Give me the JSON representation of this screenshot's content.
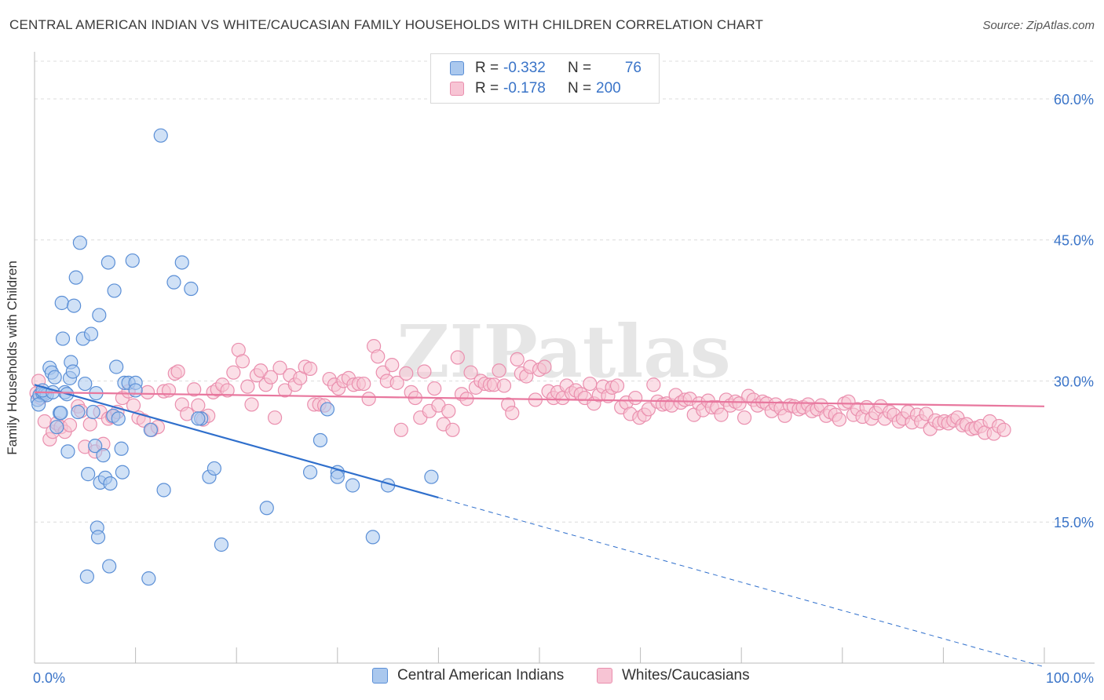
{
  "title": "CENTRAL AMERICAN INDIAN VS WHITE/CAUCASIAN FAMILY HOUSEHOLDS WITH CHILDREN CORRELATION CHART",
  "source": "Source: ZipAtlas.com",
  "watermark": "ZIPatlas",
  "colors": {
    "blue_fill": "#aac8ee",
    "blue_stroke": "#5b8fd6",
    "blue_line": "#2f6fcc",
    "pink_fill": "#f7c4d4",
    "pink_stroke": "#ea8fae",
    "pink_line": "#e8779e",
    "axis_text": "#3a74c8",
    "grid": "#dcdcdc"
  },
  "legend": {
    "rows": [
      {
        "r_label": "R =",
        "r_value": "-0.332",
        "n_label": "N =",
        "n_value": "76"
      },
      {
        "r_label": "R =",
        "r_value": "-0.178",
        "n_label": "N =",
        "n_value": "200"
      }
    ]
  },
  "chart_data": {
    "type": "scatter",
    "title": "CENTRAL AMERICAN INDIAN VS WHITE/CAUCASIAN FAMILY HOUSEHOLDS WITH CHILDREN CORRELATION CHART",
    "xlabel": "",
    "ylabel": "Family Households with Children",
    "xlim": [
      0,
      100
    ],
    "ylim": [
      0,
      64
    ],
    "x_tick_labels": [
      "0.0%",
      "100.0%"
    ],
    "y_ticks": [
      15,
      30,
      45,
      60
    ],
    "y_tick_labels": [
      "15.0%",
      "30.0%",
      "45.0%",
      "60.0%"
    ],
    "grid": true,
    "legend_position": "bottom",
    "series": [
      {
        "name": "Central American Indians",
        "color": "blue",
        "trend": {
          "x0": 0,
          "y0": 29.6,
          "x1": 40,
          "y1": 17.6,
          "dashed_to_x": 100,
          "dashed_to_y": -0.4
        },
        "points": [
          [
            0.3,
            28.0
          ],
          [
            0.5,
            28.5
          ],
          [
            0.8,
            28.7
          ],
          [
            1.0,
            28.6
          ],
          [
            1.2,
            28.5
          ],
          [
            1.5,
            31.4
          ],
          [
            1.7,
            30.9
          ],
          [
            2.0,
            30.4
          ],
          [
            2.2,
            25.1
          ],
          [
            2.5,
            26.6
          ],
          [
            2.7,
            38.3
          ],
          [
            2.8,
            34.5
          ],
          [
            3.0,
            28.8
          ],
          [
            3.3,
            22.5
          ],
          [
            3.5,
            30.3
          ],
          [
            3.6,
            32.0
          ],
          [
            3.8,
            31.0
          ],
          [
            3.9,
            38.0
          ],
          [
            4.1,
            41.0
          ],
          [
            4.3,
            26.7
          ],
          [
            4.5,
            44.7
          ],
          [
            4.8,
            34.5
          ],
          [
            5.0,
            29.7
          ],
          [
            5.3,
            20.1
          ],
          [
            5.6,
            35.0
          ],
          [
            5.8,
            26.7
          ],
          [
            6.0,
            23.1
          ],
          [
            6.2,
            14.4
          ],
          [
            6.3,
            13.4
          ],
          [
            6.4,
            37.0
          ],
          [
            6.5,
            19.2
          ],
          [
            6.8,
            22.1
          ],
          [
            7.0,
            19.7
          ],
          [
            7.3,
            42.6
          ],
          [
            7.5,
            19.1
          ],
          [
            7.8,
            26.3
          ],
          [
            7.9,
            39.6
          ],
          [
            8.1,
            31.5
          ],
          [
            8.6,
            22.8
          ],
          [
            8.7,
            20.3
          ],
          [
            8.9,
            29.8
          ],
          [
            9.3,
            29.8
          ],
          [
            9.7,
            42.8
          ],
          [
            10.0,
            29.8
          ],
          [
            10.0,
            29.0
          ],
          [
            11.5,
            24.8
          ],
          [
            12.5,
            56.1
          ],
          [
            12.8,
            18.4
          ],
          [
            13.8,
            40.5
          ],
          [
            14.6,
            42.6
          ],
          [
            15.5,
            39.8
          ],
          [
            16.5,
            26.0
          ],
          [
            17.3,
            19.8
          ],
          [
            17.8,
            20.7
          ],
          [
            18.5,
            12.6
          ],
          [
            23.0,
            16.5
          ],
          [
            27.3,
            20.3
          ],
          [
            28.3,
            23.7
          ],
          [
            29.0,
            27.0
          ],
          [
            30.0,
            20.3
          ],
          [
            30.0,
            19.8
          ],
          [
            31.5,
            18.9
          ],
          [
            33.5,
            13.4
          ],
          [
            35.0,
            18.9
          ],
          [
            39.3,
            19.8
          ],
          [
            5.2,
            9.2
          ],
          [
            7.4,
            10.3
          ],
          [
            11.3,
            9.0
          ],
          [
            2.6,
            26.6
          ],
          [
            0.8,
            29.0
          ],
          [
            1.8,
            28.8
          ],
          [
            0.4,
            27.5
          ],
          [
            3.2,
            28.6
          ],
          [
            6.1,
            28.7
          ],
          [
            16.2,
            26.0
          ],
          [
            8.3,
            26.0
          ]
        ]
      },
      {
        "name": "Whites/Caucasians",
        "color": "pink",
        "trend": {
          "x0": 0,
          "y0": 28.8,
          "x1": 100,
          "y1": 27.3
        },
        "points": [
          [
            0.2,
            28.7
          ],
          [
            0.4,
            30.0
          ],
          [
            0.6,
            28.2
          ],
          [
            1.0,
            25.7
          ],
          [
            1.5,
            23.8
          ],
          [
            1.8,
            24.6
          ],
          [
            2.2,
            25.5
          ],
          [
            2.6,
            25.1
          ],
          [
            3.0,
            24.6
          ],
          [
            3.5,
            25.3
          ],
          [
            4.3,
            27.3
          ],
          [
            4.6,
            26.8
          ],
          [
            5.0,
            23.0
          ],
          [
            5.5,
            25.4
          ],
          [
            6.0,
            22.5
          ],
          [
            6.5,
            26.7
          ],
          [
            6.8,
            23.3
          ],
          [
            7.3,
            26.0
          ],
          [
            7.7,
            26.2
          ],
          [
            8.2,
            26.7
          ],
          [
            8.7,
            28.2
          ],
          [
            9.3,
            28.9
          ],
          [
            9.8,
            27.4
          ],
          [
            10.3,
            26.1
          ],
          [
            10.8,
            25.8
          ],
          [
            11.2,
            28.8
          ],
          [
            11.6,
            24.8
          ],
          [
            12.2,
            25.1
          ],
          [
            12.8,
            28.9
          ],
          [
            13.3,
            29.0
          ],
          [
            13.9,
            30.8
          ],
          [
            14.2,
            31.0
          ],
          [
            14.6,
            27.5
          ],
          [
            15.1,
            26.5
          ],
          [
            15.8,
            29.1
          ],
          [
            16.2,
            27.4
          ],
          [
            16.7,
            25.9
          ],
          [
            17.2,
            26.3
          ],
          [
            17.7,
            28.8
          ],
          [
            18.1,
            29.1
          ],
          [
            18.6,
            29.6
          ],
          [
            19.1,
            29.0
          ],
          [
            19.7,
            30.9
          ],
          [
            20.2,
            33.3
          ],
          [
            20.6,
            32.1
          ],
          [
            21.1,
            29.4
          ],
          [
            21.5,
            27.5
          ],
          [
            22.0,
            30.6
          ],
          [
            22.4,
            31.1
          ],
          [
            22.9,
            29.6
          ],
          [
            23.4,
            30.4
          ],
          [
            23.8,
            26.1
          ],
          [
            24.3,
            31.4
          ],
          [
            24.8,
            29.0
          ],
          [
            25.3,
            30.6
          ],
          [
            25.8,
            29.6
          ],
          [
            26.3,
            30.3
          ],
          [
            26.8,
            31.5
          ],
          [
            27.3,
            31.3
          ],
          [
            27.7,
            27.5
          ],
          [
            28.2,
            27.5
          ],
          [
            28.7,
            27.4
          ],
          [
            29.2,
            30.2
          ],
          [
            29.7,
            29.6
          ],
          [
            30.1,
            29.2
          ],
          [
            30.6,
            30.0
          ],
          [
            31.1,
            30.3
          ],
          [
            31.6,
            29.6
          ],
          [
            32.1,
            29.7
          ],
          [
            32.6,
            29.7
          ],
          [
            33.1,
            28.1
          ],
          [
            33.6,
            33.7
          ],
          [
            34.0,
            32.6
          ],
          [
            34.5,
            30.9
          ],
          [
            34.9,
            30.0
          ],
          [
            35.4,
            31.7
          ],
          [
            35.9,
            29.8
          ],
          [
            36.3,
            24.8
          ],
          [
            36.8,
            30.8
          ],
          [
            37.3,
            28.8
          ],
          [
            37.7,
            28.2
          ],
          [
            38.2,
            26.1
          ],
          [
            38.6,
            31.0
          ],
          [
            39.1,
            26.8
          ],
          [
            39.6,
            29.2
          ],
          [
            40.0,
            27.4
          ],
          [
            40.5,
            25.4
          ],
          [
            41.0,
            26.8
          ],
          [
            41.4,
            24.8
          ],
          [
            41.9,
            32.5
          ],
          [
            42.3,
            28.6
          ],
          [
            42.8,
            28.1
          ],
          [
            43.2,
            30.9
          ],
          [
            43.7,
            29.3
          ],
          [
            44.2,
            30.0
          ],
          [
            44.6,
            29.7
          ],
          [
            45.1,
            29.6
          ],
          [
            45.5,
            29.6
          ],
          [
            46.0,
            31.1
          ],
          [
            46.5,
            29.5
          ],
          [
            46.9,
            27.5
          ],
          [
            47.3,
            26.6
          ],
          [
            47.8,
            32.3
          ],
          [
            48.2,
            30.8
          ],
          [
            48.7,
            30.5
          ],
          [
            49.1,
            31.5
          ],
          [
            49.6,
            28.0
          ],
          [
            50.0,
            31.2
          ],
          [
            50.5,
            31.5
          ],
          [
            50.9,
            28.9
          ],
          [
            51.4,
            28.2
          ],
          [
            51.8,
            28.8
          ],
          [
            52.3,
            28.2
          ],
          [
            52.7,
            29.5
          ],
          [
            53.2,
            28.7
          ],
          [
            53.6,
            29.0
          ],
          [
            54.1,
            28.6
          ],
          [
            54.5,
            28.2
          ],
          [
            55.0,
            29.7
          ],
          [
            55.4,
            27.6
          ],
          [
            55.9,
            28.5
          ],
          [
            56.3,
            29.4
          ],
          [
            56.8,
            28.4
          ],
          [
            57.2,
            29.3
          ],
          [
            57.7,
            29.5
          ],
          [
            58.1,
            27.2
          ],
          [
            58.6,
            27.7
          ],
          [
            59.0,
            26.5
          ],
          [
            59.5,
            28.2
          ],
          [
            59.9,
            26.1
          ],
          [
            60.4,
            26.4
          ],
          [
            60.8,
            27.0
          ],
          [
            61.3,
            29.6
          ],
          [
            61.7,
            27.8
          ],
          [
            62.2,
            27.5
          ],
          [
            62.6,
            27.6
          ],
          [
            63.1,
            27.4
          ],
          [
            63.5,
            28.5
          ],
          [
            64.0,
            27.7
          ],
          [
            64.4,
            28.0
          ],
          [
            64.9,
            28.1
          ],
          [
            65.3,
            26.4
          ],
          [
            65.8,
            27.6
          ],
          [
            66.2,
            26.9
          ],
          [
            66.7,
            27.9
          ],
          [
            67.1,
            27.2
          ],
          [
            67.6,
            27.2
          ],
          [
            68.0,
            26.4
          ],
          [
            68.5,
            28.0
          ],
          [
            68.9,
            27.4
          ],
          [
            69.4,
            27.8
          ],
          [
            69.8,
            27.6
          ],
          [
            70.3,
            26.1
          ],
          [
            70.7,
            28.4
          ],
          [
            71.2,
            28.0
          ],
          [
            71.6,
            27.4
          ],
          [
            72.1,
            27.8
          ],
          [
            72.5,
            27.6
          ],
          [
            73.0,
            26.8
          ],
          [
            73.4,
            27.5
          ],
          [
            73.9,
            27.1
          ],
          [
            74.3,
            26.3
          ],
          [
            74.8,
            27.4
          ],
          [
            75.2,
            27.3
          ],
          [
            75.7,
            27.0
          ],
          [
            76.1,
            27.2
          ],
          [
            76.6,
            27.5
          ],
          [
            77.0,
            26.8
          ],
          [
            77.5,
            27.0
          ],
          [
            77.9,
            27.4
          ],
          [
            78.4,
            26.3
          ],
          [
            78.8,
            26.7
          ],
          [
            79.3,
            26.4
          ],
          [
            79.7,
            25.9
          ],
          [
            80.2,
            27.6
          ],
          [
            80.6,
            27.8
          ],
          [
            81.1,
            26.4
          ],
          [
            81.5,
            27.0
          ],
          [
            82.0,
            26.2
          ],
          [
            82.4,
            27.2
          ],
          [
            82.9,
            26.0
          ],
          [
            83.3,
            26.6
          ],
          [
            83.8,
            27.3
          ],
          [
            84.2,
            26.0
          ],
          [
            84.7,
            26.7
          ],
          [
            85.1,
            26.4
          ],
          [
            85.6,
            25.7
          ],
          [
            86.0,
            26.0
          ],
          [
            86.5,
            26.7
          ],
          [
            86.9,
            25.6
          ],
          [
            87.4,
            26.4
          ],
          [
            87.8,
            25.7
          ],
          [
            88.3,
            26.5
          ],
          [
            88.7,
            24.9
          ],
          [
            89.2,
            25.8
          ],
          [
            89.6,
            25.5
          ],
          [
            90.1,
            25.7
          ],
          [
            90.5,
            25.5
          ],
          [
            91.0,
            25.8
          ],
          [
            91.4,
            26.1
          ],
          [
            91.9,
            25.3
          ],
          [
            92.3,
            25.4
          ],
          [
            92.8,
            24.9
          ],
          [
            93.2,
            25.0
          ],
          [
            93.7,
            25.2
          ],
          [
            94.1,
            24.5
          ],
          [
            94.6,
            25.7
          ],
          [
            95.0,
            24.4
          ],
          [
            95.5,
            25.2
          ],
          [
            96.0,
            24.8
          ]
        ]
      }
    ]
  }
}
